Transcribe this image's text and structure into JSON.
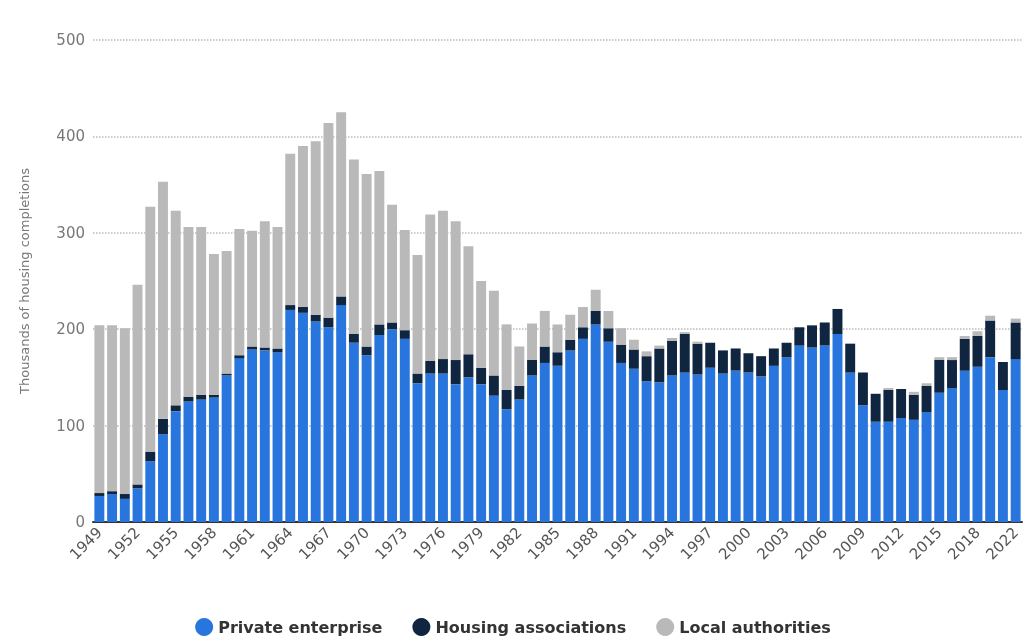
{
  "chart_data": {
    "type": "bar",
    "stacked": true,
    "ylabel": "Thousands of housing completions",
    "categories": [
      "1949",
      null,
      null,
      "1952",
      null,
      null,
      "1955",
      null,
      null,
      "1958",
      null,
      null,
      "1961",
      null,
      null,
      "1964",
      null,
      null,
      "1967",
      null,
      null,
      "1970",
      null,
      null,
      "1973",
      null,
      null,
      "1976",
      null,
      null,
      "1979",
      null,
      null,
      "1982",
      null,
      null,
      "1985",
      null,
      null,
      "1988",
      null,
      null,
      "1991",
      null,
      null,
      "1994",
      null,
      null,
      "1997",
      null,
      null,
      "2000",
      null,
      null,
      "2003",
      null,
      null,
      "2006",
      null,
      null,
      "2009",
      null,
      null,
      "2012",
      null,
      null,
      "2015",
      null,
      null,
      "2018",
      null,
      null,
      "2022"
    ],
    "series": [
      {
        "name": "Private enterprise",
        "color": "#2876dd",
        "values": [
          27,
          29,
          24,
          35,
          63,
          91,
          115,
          125,
          127,
          129,
          152,
          170,
          179,
          178,
          176,
          220,
          217,
          208,
          202,
          225,
          186,
          173,
          194,
          200,
          190,
          144,
          154,
          154,
          143,
          150,
          143,
          131,
          117,
          127,
          152,
          165,
          162,
          178,
          190,
          205,
          187,
          165,
          159,
          146,
          145,
          152,
          155,
          153,
          160,
          154,
          157,
          155,
          151,
          162,
          171,
          183,
          181,
          183,
          195,
          155,
          121,
          104,
          104,
          108,
          106,
          114,
          134,
          139,
          157,
          161,
          171,
          137,
          169
        ]
      },
      {
        "name": "Housing associations",
        "color": "#0f2540",
        "values": [
          3,
          3,
          5,
          4,
          10,
          16,
          6,
          5,
          5,
          3,
          2,
          3,
          3,
          3,
          4,
          5,
          6,
          7,
          10,
          9,
          9,
          9,
          11,
          7,
          9,
          10,
          13,
          15,
          25,
          24,
          17,
          21,
          20,
          14,
          16,
          17,
          14,
          11,
          12,
          14,
          14,
          19,
          20,
          26,
          35,
          36,
          40,
          32,
          26,
          24,
          23,
          20,
          21,
          18,
          15,
          19,
          23,
          24,
          26,
          30,
          34,
          29,
          33,
          30,
          26,
          27,
          34,
          29,
          33,
          32,
          38,
          29,
          38
        ]
      },
      {
        "name": "Local authorities",
        "color": "#b9b9b9",
        "values": [
          174,
          172,
          172,
          207,
          254,
          246,
          202,
          176,
          174,
          146,
          127,
          131,
          120,
          131,
          126,
          157,
          167,
          180,
          202,
          191,
          181,
          179,
          159,
          122,
          104,
          123,
          152,
          154,
          144,
          112,
          90,
          88,
          68,
          41,
          38,
          37,
          29,
          26,
          21,
          22,
          18,
          17,
          10,
          5,
          3,
          3,
          2,
          2,
          0,
          0,
          0,
          0,
          0,
          0,
          0,
          0,
          0,
          0,
          0,
          0,
          0,
          0,
          2,
          0,
          3,
          3,
          3,
          3,
          3,
          5,
          5,
          0,
          4
        ]
      }
    ],
    "ylim": [
      0,
      500
    ],
    "yticks": [
      0,
      100,
      200,
      300,
      400,
      500
    ],
    "grid": "y",
    "legend": "bottom"
  }
}
